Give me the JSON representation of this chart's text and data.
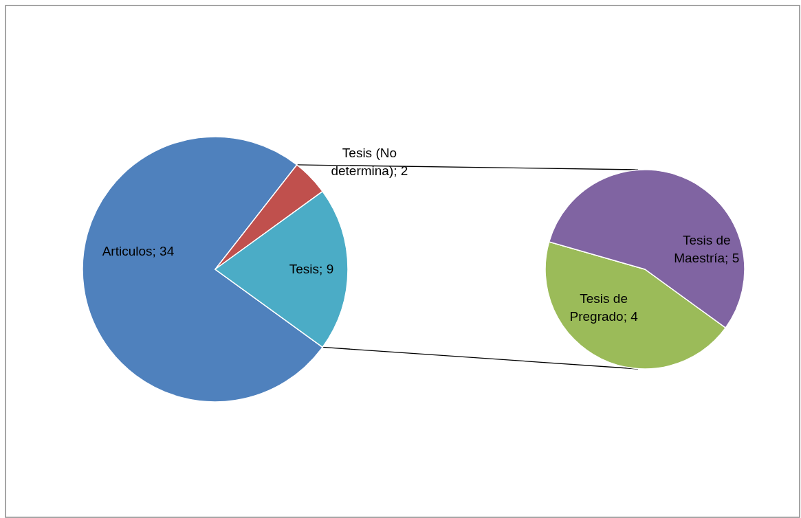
{
  "chart_data": [
    {
      "type": "pie",
      "categories": [
        "Articulos; 34",
        "Tesis (No determina); 2",
        "Tesis; 9"
      ],
      "values": [
        34,
        2,
        9
      ],
      "colors": [
        "#4f81bd",
        "#c0504d",
        "#4bacc6"
      ],
      "legend": false
    },
    {
      "type": "pie",
      "categories": [
        "Tesis de Pregrado; 4",
        "Tesis de Maestría; 5"
      ],
      "values": [
        4,
        5
      ],
      "colors": [
        "#9bbb59",
        "#8064a2"
      ],
      "legend": false
    }
  ]
}
